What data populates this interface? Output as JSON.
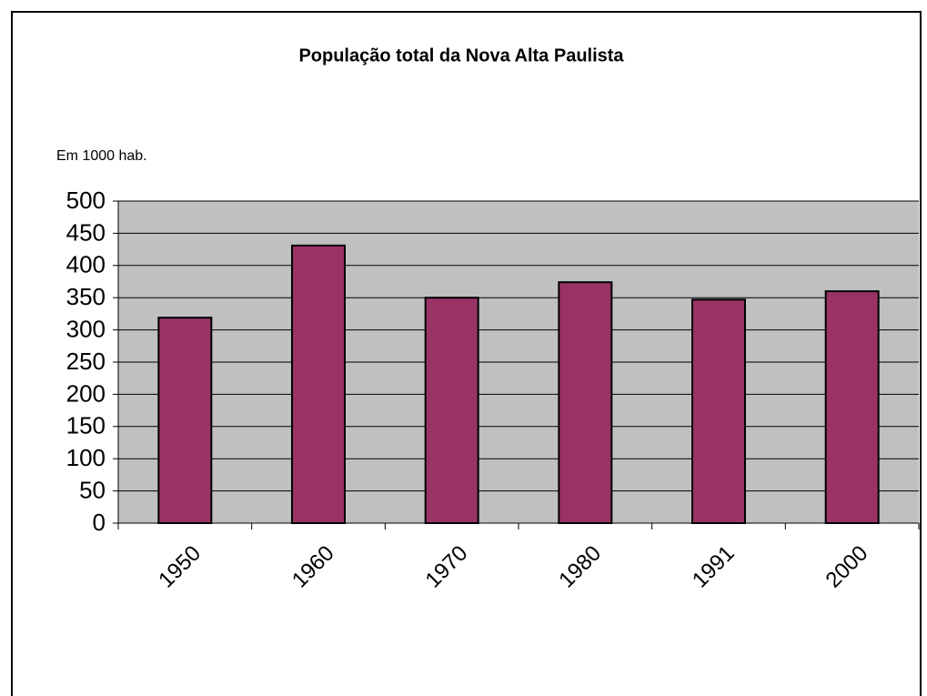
{
  "chart_data": {
    "type": "bar",
    "title": "População total da Nova Alta Paulista",
    "subtitle": "Em 1000 hab.",
    "categories": [
      "1950",
      "1960",
      "1970",
      "1980",
      "1991",
      "2000"
    ],
    "values": [
      319,
      431,
      350,
      374,
      347,
      360
    ],
    "color": "#993366",
    "ylim": [
      0,
      500
    ],
    "yticks": [
      0,
      50,
      100,
      150,
      200,
      250,
      300,
      350,
      400,
      450,
      500
    ],
    "grid": true
  }
}
